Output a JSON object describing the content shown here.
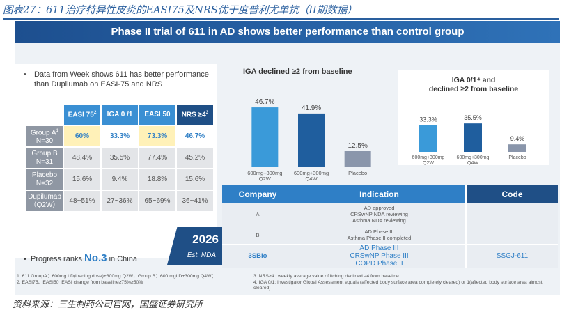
{
  "figure_title": "图表27：611治疗特异性皮炎的EASI75及NRS优于度普利尤单抗（II期数据）",
  "banner": "Phase II trial of 611 in AD shows better performance than control group",
  "bullet_1": "Data from Week shows 611 has better performance than Dupilumab on EASI-75 and NRS",
  "bullet_dot": "•",
  "efficacy_table": {
    "headers": [
      {
        "label": "EASI 75",
        "sup": "2"
      },
      {
        "label": "IGA 0 /1",
        "sup": ""
      },
      {
        "label": "EASI 50",
        "sup": ""
      },
      {
        "label": "NRS ≥4",
        "sup": "3"
      }
    ],
    "rows": [
      {
        "name": "Group A",
        "sup": "1",
        "sub": "N=30",
        "values": [
          "60%",
          "33.3%",
          "73.3%",
          "46.7%"
        ]
      },
      {
        "name": "Group B",
        "sup": "",
        "sub": "N=31",
        "values": [
          "48.4%",
          "35.5%",
          "77.4%",
          "45.2%"
        ]
      },
      {
        "name": "Placebo",
        "sup": "",
        "sub": "N=32",
        "values": [
          "15.6%",
          "9.4%",
          "18.8%",
          "15.6%"
        ]
      },
      {
        "name": "Dupilumab",
        "sup": "",
        "sub": "（Q2W）",
        "values": [
          "48~51%",
          "27~36%",
          "65~69%",
          "36~41%"
        ]
      }
    ]
  },
  "bullet_2": {
    "prefix": "Progress ranks ",
    "highlight": "No.3",
    "suffix": " in China"
  },
  "nda_badge": {
    "year": "2026",
    "label": "Est. NDA"
  },
  "chart_data": [
    {
      "type": "bar",
      "title": "IGA declined ≥2 from baseline",
      "categories": [
        [
          "600mg+300mg",
          "Q2W"
        ],
        [
          "600mg+300mg",
          "Q4W"
        ],
        [
          "Placebo"
        ]
      ],
      "values": [
        46.7,
        41.9,
        12.5
      ],
      "value_labels": [
        "46.7%",
        "41.9%",
        "12.5%"
      ],
      "colors": [
        "#3a9ad9",
        "#1f5e9e",
        "#8a96ab"
      ],
      "ylim": [
        0,
        50
      ]
    },
    {
      "type": "bar",
      "title": [
        "IGA 0/1⁴ and",
        "declined ≥2 from baseline"
      ],
      "categories": [
        [
          "600mg+300mg",
          "Q2W"
        ],
        [
          "600mg+300mg",
          "Q4W"
        ],
        [
          "Placebo"
        ]
      ],
      "values": [
        33.3,
        35.5,
        9.4
      ],
      "value_labels": [
        "33.3%",
        "35.5%",
        "9.4%"
      ],
      "colors": [
        "#3a9ad9",
        "#1f5e9e",
        "#8a96ab"
      ],
      "ylim": [
        0,
        40
      ]
    }
  ],
  "indication_table": {
    "headers": [
      "Company",
      "Indication",
      "Code"
    ],
    "rows": [
      {
        "company": "A",
        "indication": [
          "AD  approved",
          "CRSwNP NDA reviewing",
          "Asthma NDA reviewing"
        ],
        "code": ""
      },
      {
        "company": "B",
        "indication": [
          "AD Phase III",
          "Asthma Phase II completed"
        ],
        "code": ""
      },
      {
        "company": "3SBio",
        "indication": [
          "AD Phase III",
          "CRSwNP Phase III",
          "COPD Phase II"
        ],
        "code": "SSGJ-611"
      }
    ]
  },
  "footnotes": {
    "col1": [
      "1.    611 GroupA：600mg LD(loading dose)+300mg Q2W，Group B：600 mgLD+300mg Q4W；",
      "2.    EASI75、EASI50 :EASI change from baseline≥75%≥50%"
    ],
    "col2": [
      "3. NRS≥4 : weekly average value of itching declined ≥4 from baseline",
      "4. IGA 0/1: Investigator Global Assessment  equals (affected body surface area completely cleared) or 1(affected body surface area almost cleared)"
    ]
  },
  "source": "资料来源：三生制药公司官网，国盛证券研究所"
}
